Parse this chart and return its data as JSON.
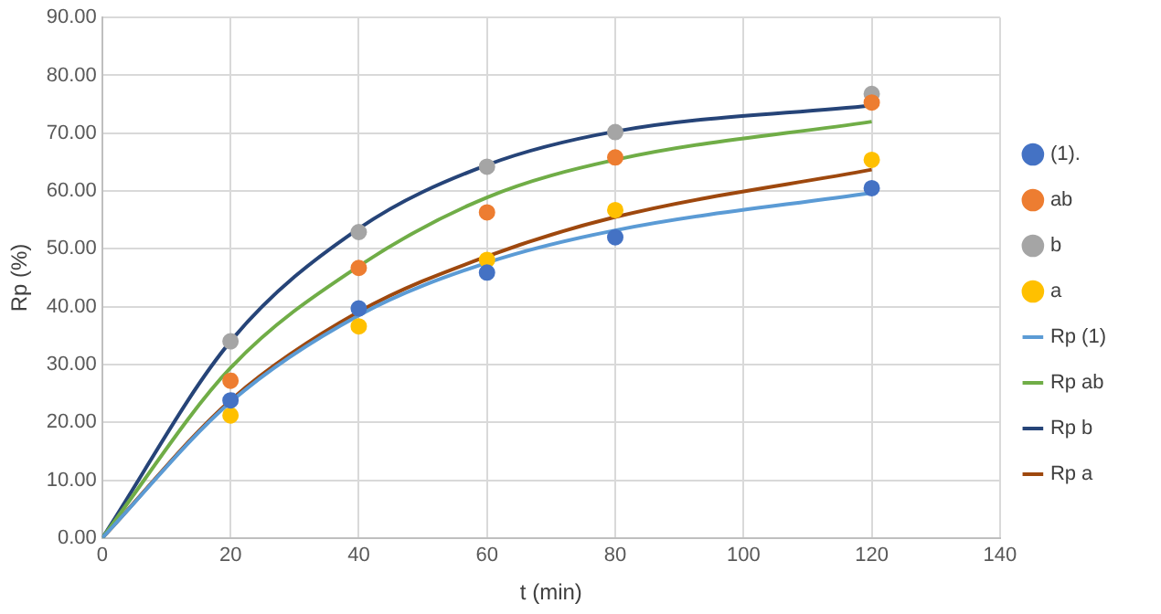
{
  "chart_data": {
    "type": "scatter",
    "xlabel": "t (min)",
    "ylabel": "Rp (%)",
    "xlim": [
      0,
      140
    ],
    "xticks": [
      0,
      20,
      40,
      60,
      80,
      100,
      120,
      140
    ],
    "ylim": [
      0,
      90
    ],
    "yticks": [
      {
        "value": 0,
        "label": "0.00"
      },
      {
        "value": 10,
        "label": "10.00"
      },
      {
        "value": 20,
        "label": "20.00"
      },
      {
        "value": 30,
        "label": "30.00"
      },
      {
        "value": 40,
        "label": "40.00"
      },
      {
        "value": 50,
        "label": "50.00"
      },
      {
        "value": 60,
        "label": "60.00"
      },
      {
        "value": 70,
        "label": "70.00"
      },
      {
        "value": 80,
        "label": "80.00"
      },
      {
        "value": 90,
        "label": "90.00"
      }
    ],
    "grid": true,
    "legend": "right",
    "series": [
      {
        "name": "(1).",
        "type": "scatter",
        "marker": "circle",
        "color": "#4472c4",
        "x": [
          20,
          40,
          60,
          80,
          120
        ],
        "values": [
          23.8,
          39.7,
          45.9,
          52.0,
          60.5
        ]
      },
      {
        "name": "ab",
        "type": "scatter",
        "marker": "circle",
        "color": "#ed7d31",
        "x": [
          20,
          40,
          60,
          80,
          120
        ],
        "values": [
          27.2,
          46.7,
          56.3,
          65.8,
          75.3
        ]
      },
      {
        "name": "b",
        "type": "scatter",
        "marker": "circle",
        "color": "#a5a5a5",
        "x": [
          20,
          40,
          60,
          80,
          120
        ],
        "values": [
          34.0,
          52.9,
          64.2,
          70.2,
          76.8
        ]
      },
      {
        "name": "a",
        "type": "scatter",
        "marker": "circle",
        "color": "#ffc000",
        "x": [
          20,
          40,
          60,
          80,
          120
        ],
        "values": [
          21.2,
          36.6,
          48.1,
          56.7,
          65.4
        ]
      },
      {
        "name": "Rp (1)",
        "type": "line",
        "marker": "none",
        "color": "#5b9bd5",
        "x": [
          0,
          20,
          40,
          60,
          80,
          120
        ],
        "values": [
          0,
          23.5,
          38.5,
          47.6,
          53.2,
          59.7
        ]
      },
      {
        "name": "Rp ab",
        "type": "line",
        "marker": "none",
        "color": "#70ad47",
        "x": [
          0,
          20,
          40,
          60,
          80,
          120
        ],
        "values": [
          0,
          29.4,
          47.0,
          58.9,
          65.4,
          72.0
        ]
      },
      {
        "name": "Rp b",
        "type": "line",
        "marker": "none",
        "color": "#264478",
        "x": [
          0,
          20,
          40,
          60,
          80,
          120
        ],
        "values": [
          0,
          34.0,
          53.5,
          64.5,
          70.3,
          74.8
        ]
      },
      {
        "name": "Rp a",
        "type": "line",
        "marker": "none",
        "color": "#9e480e",
        "x": [
          0,
          20,
          40,
          60,
          80,
          120
        ],
        "values": [
          0,
          23.8,
          39.1,
          48.7,
          55.5,
          63.7
        ]
      }
    ]
  }
}
